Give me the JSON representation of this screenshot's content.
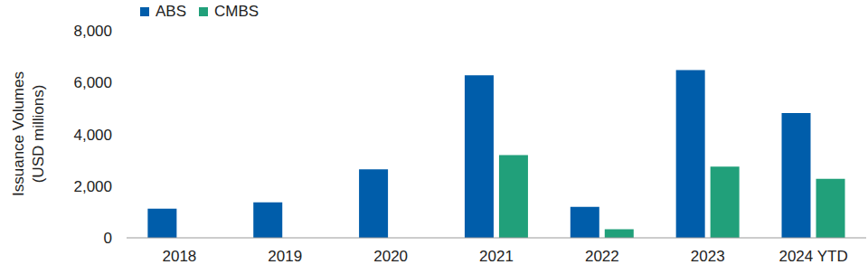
{
  "chart_data": {
    "type": "bar",
    "y_label": "Issuance Volumes\n(USD millions)",
    "categories": [
      "2018",
      "2019",
      "2020",
      "2021",
      "2022",
      "2023",
      "2024 YTD"
    ],
    "series": [
      {
        "name": "ABS",
        "color": "#005daa",
        "values": [
          1130,
          1370,
          2650,
          6280,
          1200,
          6480,
          4820
        ]
      },
      {
        "name": "CMBS",
        "color": "#21a07a",
        "values": [
          null,
          null,
          null,
          3200,
          330,
          2750,
          2280
        ]
      }
    ],
    "ylim": [
      0,
      8000
    ],
    "yticks": [
      {
        "value": 0,
        "label": "0"
      },
      {
        "value": 2000,
        "label": "2,000"
      },
      {
        "value": 4000,
        "label": "4,000"
      },
      {
        "value": 6000,
        "label": "6,000"
      },
      {
        "value": 8000,
        "label": "8,000"
      }
    ],
    "grid": false,
    "legend": "top-left"
  }
}
